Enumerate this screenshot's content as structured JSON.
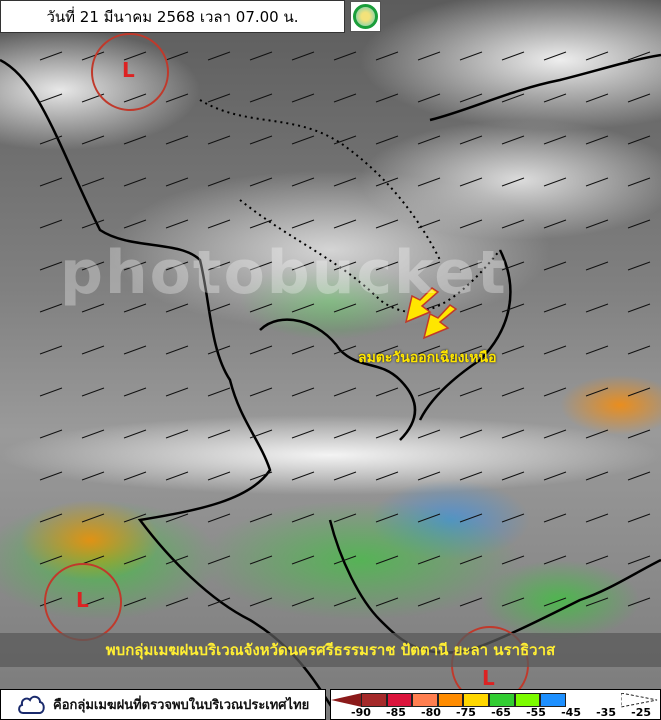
{
  "header": {
    "title": "วันที่ 21 มีนาคม 2568 เวลา 07.00 น."
  },
  "logo": {
    "name": "tmd-logo"
  },
  "map": {
    "low_pressure_marks": [
      "L",
      "L",
      "L"
    ],
    "wind_label": "ลมตะวันออกเฉียงเหนือ",
    "watermark": "photobucket",
    "banner": "พบกลุ่มเมฆฝนบริเวณจังหวัดนครศรีธรรมราช ปัตตานี ยะลา นราธิวาส",
    "arrow_color": "#ffe600"
  },
  "legend": {
    "icon": "cloud-outline-icon",
    "text": "คือกลุ่มเมฆฝนที่ตรวจพบในบริเวณประเทศไทย"
  },
  "colorbar": {
    "ticks": [
      "-90",
      "-85",
      "-80",
      "-75",
      "-65",
      "-55",
      "-45",
      "-35",
      "-25"
    ],
    "colors": [
      "#dc143c",
      "#ff7f50",
      "#ff8c00",
      "#ffd700",
      "#32cd32",
      "#7cfc00",
      "#1e90ff"
    ],
    "low_end_color": "#8b1a1a"
  }
}
